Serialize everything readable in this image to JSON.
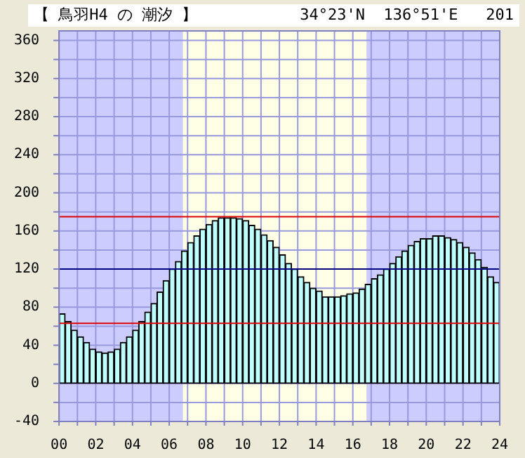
{
  "chart_data": {
    "type": "bar",
    "title": "【 鳥羽H4 の 潮汐 】",
    "subtitle": "34°23'N  136°51'E   201",
    "x": [
      0.17,
      0.5,
      0.83,
      1.17,
      1.5,
      1.83,
      2.17,
      2.5,
      2.83,
      3.17,
      3.5,
      3.83,
      4.17,
      4.5,
      4.83,
      5.17,
      5.5,
      5.83,
      6.17,
      6.5,
      6.83,
      7.17,
      7.5,
      7.83,
      8.17,
      8.5,
      8.83,
      9.17,
      9.5,
      9.83,
      10.17,
      10.5,
      10.83,
      11.17,
      11.5,
      11.83,
      12.17,
      12.5,
      12.83,
      13.17,
      13.5,
      13.83,
      14.17,
      14.5,
      14.83,
      15.17,
      15.5,
      15.83,
      16.17,
      16.5,
      16.83,
      17.17,
      17.5,
      17.83,
      18.17,
      18.5,
      18.83,
      19.17,
      19.5,
      19.83,
      20.17,
      20.5,
      20.83,
      21.17,
      21.5,
      21.83,
      22.17,
      22.5,
      22.83,
      23.17,
      23.5,
      23.83
    ],
    "values": [
      73,
      65,
      56,
      49,
      43,
      36,
      33,
      32,
      33,
      36,
      43,
      49,
      56,
      65,
      75,
      84,
      96,
      108,
      120,
      128,
      139,
      148,
      155,
      162,
      167,
      171,
      174,
      174,
      174,
      173,
      171,
      166,
      162,
      156,
      150,
      143,
      135,
      126,
      120,
      112,
      106,
      100,
      97,
      91,
      91,
      91,
      92,
      94,
      95,
      99,
      104,
      110,
      114,
      120,
      126,
      133,
      139,
      145,
      149,
      152,
      152,
      155,
      155,
      153,
      151,
      148,
      143,
      137,
      130,
      122,
      112,
      106
    ],
    "color": "#bfffff",
    "xlim": [
      0,
      24
    ],
    "xticks": [
      {
        "value": 0,
        "label": "00"
      },
      {
        "value": 1,
        "label": null
      },
      {
        "value": 2,
        "label": "02"
      },
      {
        "value": 3,
        "label": null
      },
      {
        "value": 4,
        "label": "04"
      },
      {
        "value": 5,
        "label": null
      },
      {
        "value": 6,
        "label": "06"
      },
      {
        "value": 7,
        "label": null
      },
      {
        "value": 8,
        "label": "08"
      },
      {
        "value": 9,
        "label": null
      },
      {
        "value": 10,
        "label": "10"
      },
      {
        "value": 11,
        "label": null
      },
      {
        "value": 12,
        "label": "12"
      },
      {
        "value": 13,
        "label": null
      },
      {
        "value": 14,
        "label": "14"
      },
      {
        "value": 15,
        "label": null
      },
      {
        "value": 16,
        "label": "16"
      },
      {
        "value": 17,
        "label": null
      },
      {
        "value": 18,
        "label": "18"
      },
      {
        "value": 19,
        "label": null
      },
      {
        "value": 20,
        "label": "20"
      },
      {
        "value": 21,
        "label": null
      },
      {
        "value": 22,
        "label": "22"
      },
      {
        "value": 23,
        "label": null
      },
      {
        "value": 24,
        "label": "24"
      }
    ],
    "ylim": [
      -40,
      370
    ],
    "yticks": [
      -40,
      {
        "value": -20,
        "label": null
      },
      0,
      {
        "value": 20,
        "label": null
      },
      40,
      {
        "value": 60,
        "label": null
      },
      80,
      {
        "value": 100,
        "label": null
      },
      120,
      {
        "value": 140,
        "label": null
      },
      160,
      {
        "value": 180,
        "label": null
      },
      200,
      {
        "value": 220,
        "label": null
      },
      240,
      {
        "value": 260,
        "label": null
      },
      280,
      {
        "value": 300,
        "label": null
      },
      320,
      {
        "value": 340,
        "label": null
      },
      360
    ],
    "grid": true,
    "legend": false,
    "bands": [
      {
        "axis": "x",
        "from": 0,
        "to": 6.75,
        "color": "#ccccff"
      },
      {
        "axis": "x",
        "from": 6.75,
        "to": 16.75,
        "color": "#ffffe6"
      },
      {
        "axis": "x",
        "from": 16.75,
        "to": 24,
        "color": "#ccccff"
      }
    ],
    "ref_lines": [
      {
        "axis": "y",
        "value": 175,
        "color": "#e00000"
      },
      {
        "axis": "y",
        "value": 63,
        "color": "#e00000"
      },
      {
        "axis": "y",
        "value": 120,
        "color": "#000080"
      }
    ]
  }
}
